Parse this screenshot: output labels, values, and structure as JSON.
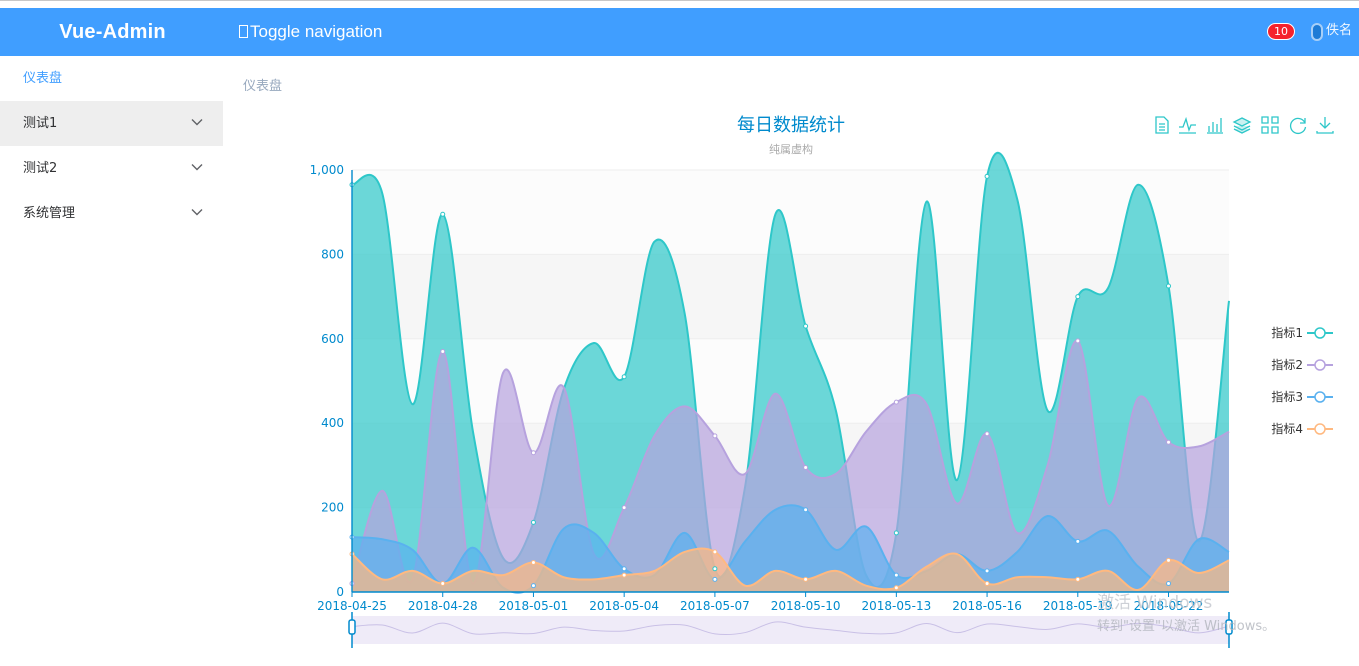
{
  "header": {
    "brand": "Vue-Admin",
    "toggle_label": "Toggle navigation",
    "notification_count": "10",
    "username": "佚名",
    "accent": "#409eff"
  },
  "sidebar": {
    "items": [
      {
        "label": "仪表盘",
        "expandable": false
      },
      {
        "label": "测试1",
        "expandable": true
      },
      {
        "label": "测试2",
        "expandable": true
      },
      {
        "label": "系统管理",
        "expandable": true
      }
    ]
  },
  "breadcrumb": "仪表盘",
  "toolbox": [
    "data-view-icon",
    "line-chart-icon",
    "bar-chart-icon",
    "stack-icon",
    "tiled-icon",
    "restore-icon",
    "save-image-icon"
  ],
  "watermark": {
    "line1": "激活 Windows",
    "line2": "转到\"设置\"以激活 Windows。"
  },
  "chart_data": {
    "type": "area",
    "title": "每日数据统计",
    "subtitle": "纯属虚构",
    "ylim": [
      0,
      1000
    ],
    "yticks": [
      "0",
      "200",
      "400",
      "600",
      "800",
      "1,000"
    ],
    "xticks": [
      "2018-04-25",
      "2018-04-28",
      "2018-05-01",
      "2018-05-04",
      "2018-05-07",
      "2018-05-10",
      "2018-05-13",
      "2018-05-16",
      "2018-05-19",
      "2018-05-22"
    ],
    "x_count": 30,
    "legend_position": "right",
    "series": [
      {
        "name": "指标1",
        "color": "#2ec7c9",
        "values": [
          965,
          945,
          445,
          895,
          380,
          80,
          165,
          480,
          590,
          510,
          830,
          660,
          55,
          250,
          895,
          630,
          430,
          40,
          140,
          925,
          265,
          985,
          930,
          430,
          700,
          720,
          965,
          725,
          120,
          690
        ]
      },
      {
        "name": "指标2",
        "color": "#b6a2de",
        "values": [
          20,
          240,
          30,
          570,
          20,
          520,
          330,
          485,
          90,
          200,
          370,
          440,
          370,
          280,
          470,
          295,
          280,
          380,
          450,
          445,
          210,
          375,
          140,
          300,
          595,
          205,
          460,
          355,
          345,
          380
        ]
      },
      {
        "name": "指标3",
        "color": "#5ab1ef",
        "values": [
          130,
          125,
          100,
          20,
          105,
          10,
          15,
          150,
          140,
          55,
          40,
          140,
          30,
          120,
          195,
          195,
          100,
          155,
          40,
          50,
          90,
          50,
          95,
          180,
          120,
          145,
          60,
          20,
          125,
          95
        ]
      },
      {
        "name": "指标4",
        "color": "#ffb980",
        "values": [
          90,
          30,
          50,
          20,
          50,
          40,
          70,
          35,
          30,
          40,
          50,
          95,
          95,
          15,
          50,
          30,
          50,
          15,
          10,
          60,
          90,
          20,
          35,
          35,
          30,
          50,
          5,
          75,
          45,
          75
        ]
      }
    ]
  }
}
